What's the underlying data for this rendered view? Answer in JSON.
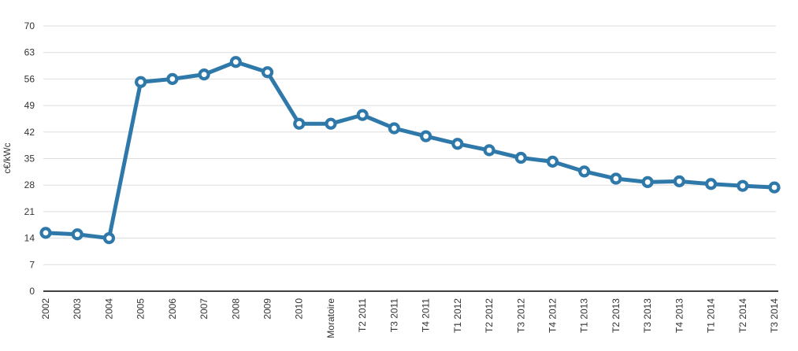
{
  "chart_data": {
    "type": "line",
    "ylabel": "c€/kWc",
    "xlabel": "",
    "ylim": [
      0,
      70
    ],
    "yticks": [
      0,
      7,
      14,
      21,
      28,
      35,
      42,
      49,
      56,
      63,
      70
    ],
    "grid": true,
    "legend_position": "none",
    "categories": [
      "2002",
      "2003",
      "2004",
      "2005",
      "2006",
      "2007",
      "2008",
      "2009",
      "2010",
      "Moratoire",
      "T2 2011",
      "T3 2011",
      "T4 2011",
      "T1 2012",
      "T2 2012",
      "T3 2012",
      "T4 2012",
      "T1 2013",
      "T2 2013",
      "T3 2013",
      "T4 2013",
      "T1 2014",
      "T2 2014",
      "T3 2014"
    ],
    "values": [
      15.4,
      15.0,
      14.0,
      55.2,
      56.0,
      57.2,
      60.5,
      57.8,
      44.2,
      44.2,
      46.5,
      43.0,
      40.9,
      38.9,
      37.2,
      35.2,
      34.2,
      31.6,
      29.7,
      28.8,
      29.0,
      28.3,
      27.8,
      27.4
    ]
  },
  "style": {
    "line_color": "#2E79A9",
    "marker_fill": "#FFFFFF",
    "grid_color": "#DDDDDD",
    "axis_color": "#000000",
    "text_color": "#333333",
    "background": "#FFFFFF"
  }
}
